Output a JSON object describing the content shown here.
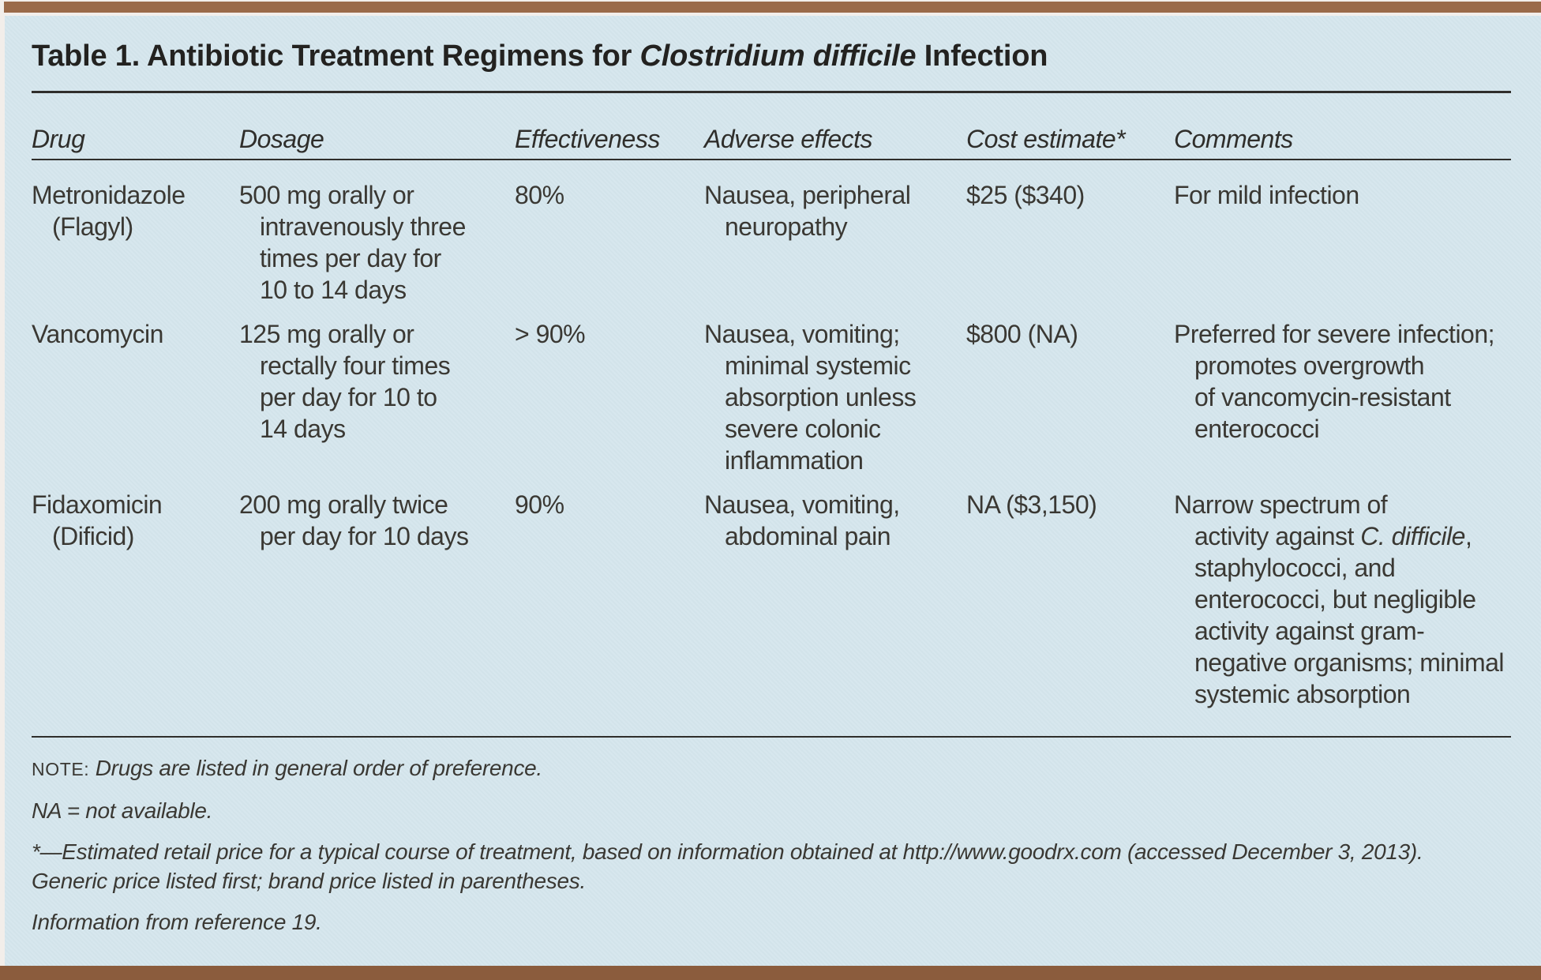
{
  "colors": {
    "panel_background": "#d5e6ed",
    "top_bar": "#9a6a49",
    "bottom_bar": "#8b5c3d",
    "text": "#3a3833"
  },
  "title": {
    "segments": [
      {
        "t": "Table 1. Antibiotic Treatment Regimens for ",
        "s": "n"
      },
      {
        "t": "Clostridium difficile",
        "s": "i"
      },
      {
        "t": " Infection",
        "s": "n"
      }
    ]
  },
  "table": {
    "headers": [
      "Drug",
      "Dosage",
      "Effectiveness",
      "Adverse effects",
      "Cost estimate*",
      "Comments"
    ],
    "rows": [
      {
        "cells": [
          [
            "Metronidazole",
            "(Flagyl)"
          ],
          [
            "500 mg orally or",
            "intravenously three",
            "times per day for",
            "10 to 14 days"
          ],
          [
            "80%"
          ],
          [
            "Nausea, peripheral",
            "neuropathy"
          ],
          [
            "$25 ($340)"
          ],
          [
            "For mild infection"
          ]
        ]
      },
      {
        "cells": [
          [
            "Vancomycin"
          ],
          [
            "125 mg orally or",
            "rectally four times",
            "per day for 10 to",
            "14 days"
          ],
          [
            "> 90%"
          ],
          [
            "Nausea, vomiting;",
            "minimal systemic",
            "absorption unless",
            "severe colonic",
            "inflammation"
          ],
          [
            "$800 (NA)"
          ],
          [
            "Preferred for severe infection;",
            "promotes overgrowth",
            "of vancomycin-resistant",
            "enterococci"
          ]
        ]
      },
      {
        "cells": [
          [
            "Fidaxomicin",
            "(Dificid)"
          ],
          [
            "200 mg orally twice",
            "per day for 10 days"
          ],
          [
            "90%"
          ],
          [
            "Nausea, vomiting,",
            "abdominal pain"
          ],
          [
            "NA ($3,150)"
          ],
          [
            "Narrow spectrum of",
            [
              {
                "t": "activity against ",
                "s": "n"
              },
              {
                "t": "C. difficile",
                "s": "i"
              },
              {
                "t": ",",
                "s": "n"
              }
            ],
            "staphylococci, and",
            "enterococci, but negligible",
            "activity against gram-",
            "negative organisms; minimal",
            "systemic absorption"
          ]
        ]
      }
    ]
  },
  "footnotes": [
    {
      "lines": [
        [
          {
            "t": "NOTE:",
            "s": "sc"
          },
          {
            "t": " Drugs are listed in general order of preference.",
            "s": "i"
          }
        ]
      ]
    },
    {
      "lines": [
        "NA = not available."
      ]
    },
    {
      "lines": [
        "*—Estimated retail price for a typical course of treatment, based on information obtained at http://www.goodrx.com (accessed December 3, 2013).",
        "Generic price listed first; brand price listed in parentheses."
      ]
    },
    {
      "lines": [
        "Information from reference 19."
      ]
    }
  ]
}
